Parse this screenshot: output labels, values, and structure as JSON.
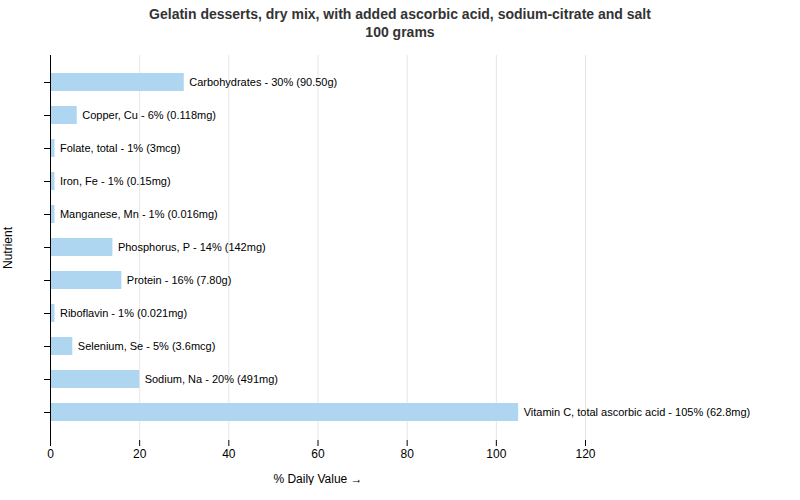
{
  "chart_data": {
    "type": "bar",
    "orientation": "horizontal",
    "title": "Gelatin desserts, dry mix, with added ascorbic acid, sodium-citrate and salt\n100 grams",
    "xlabel": "% Daily Value",
    "ylabel": "Nutrient",
    "categories": [
      "Carbohydrates - 30% (90.50g)",
      "Copper, Cu - 6% (0.118mg)",
      "Folate, total - 1% (3mcg)",
      "Iron, Fe - 1% (0.15mg)",
      "Manganese, Mn - 1% (0.016mg)",
      "Phosphorus, P - 14% (142mg)",
      "Protein - 16% (7.80g)",
      "Riboflavin - 1% (0.021mg)",
      "Selenium, Se - 5% (3.6mcg)",
      "Sodium, Na - 20% (491mg)",
      "Vitamin C, total ascorbic acid - 105% (62.8mg)"
    ],
    "values": [
      30,
      6,
      1,
      1,
      1,
      14,
      16,
      1,
      5,
      20,
      105
    ],
    "color": "#aed6f1",
    "xlim": [
      0,
      120
    ],
    "xticks": [
      0,
      20,
      40,
      60,
      80,
      100,
      120
    ],
    "grid": true,
    "tick_labels": "x"
  }
}
